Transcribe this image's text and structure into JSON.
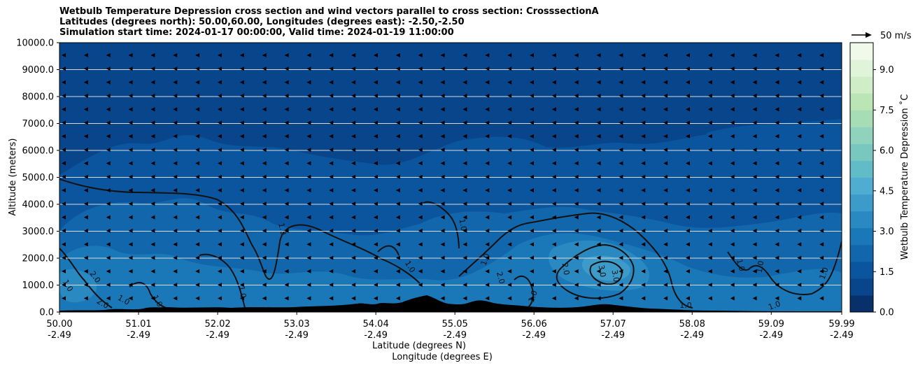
{
  "title": {
    "line1": "Wetbulb Temperature Depression cross section and wind vectors parallel to cross section: CrosssectionA",
    "line2": "Latitudes (degrees north): 50.00,60.00, Longitudes (degrees east): -2.50,-2.50",
    "line3": "Simulation start time: 2024-01-17 00:00:00, Valid time: 2024-01-19 11:00:00"
  },
  "chart_data": {
    "type": "heatmap",
    "ylabel": "Altitude (meters)",
    "xlabel_lat": "Latitude (degrees N)",
    "xlabel_lon": "Longitude (degrees E)",
    "ylim": [
      0,
      10000
    ],
    "xlim": [
      50.0,
      59.99
    ],
    "y_ticks": [
      "0.0",
      "1000.0",
      "2000.0",
      "3000.0",
      "4000.0",
      "5000.0",
      "6000.0",
      "7000.0",
      "8000.0",
      "9000.0",
      "10000.0"
    ],
    "x_ticks_lat": [
      "50.00",
      "51.01",
      "52.02",
      "53.03",
      "54.04",
      "55.05",
      "56.06",
      "57.07",
      "58.08",
      "59.09",
      "59.99"
    ],
    "x_ticks_lon": [
      "-2.49",
      "-2.49",
      "-2.49",
      "-2.49",
      "-2.49",
      "-2.49",
      "-2.49",
      "-2.49",
      "-2.49",
      "-2.49",
      "-2.49"
    ],
    "horizontal_grid": true,
    "colorbar": {
      "label": "Wetbulb Temperature Depression ˚C",
      "range": [
        0,
        10
      ],
      "tick_labels": [
        "0.0",
        "1.5",
        "3.0",
        "4.5",
        "6.0",
        "7.5",
        "9.0"
      ],
      "colors": [
        "#08306b",
        "#08458a",
        "#0b559f",
        "#1267ac",
        "#1a78b8",
        "#2b89c2",
        "#3d9bca",
        "#4eadd0",
        "#62bcc7",
        "#78c8c0",
        "#8fd3bc",
        "#a7ddb5",
        "#bce5b6",
        "#cfedc6",
        "#e0f4d9",
        "#f0faeb"
      ],
      "colormap": "GnBu"
    },
    "contour_levels": [
      "1.0",
      "2.0",
      "3.0"
    ],
    "contour_labels": [
      "1.0",
      "1.0",
      "1.0",
      "1.0",
      "1.0",
      "1.0",
      "1.0",
      "1.0",
      "1.0",
      "1.0",
      "1.0",
      "1.0",
      "1.0",
      "1.0",
      "2.0",
      "2.0",
      "2.0",
      "2.0",
      "3.0",
      "3.0"
    ],
    "terrain_color": "#000000",
    "wind_vector_key": "50 m/s",
    "wind_direction": "toward lower latitude (leftward) throughout"
  }
}
